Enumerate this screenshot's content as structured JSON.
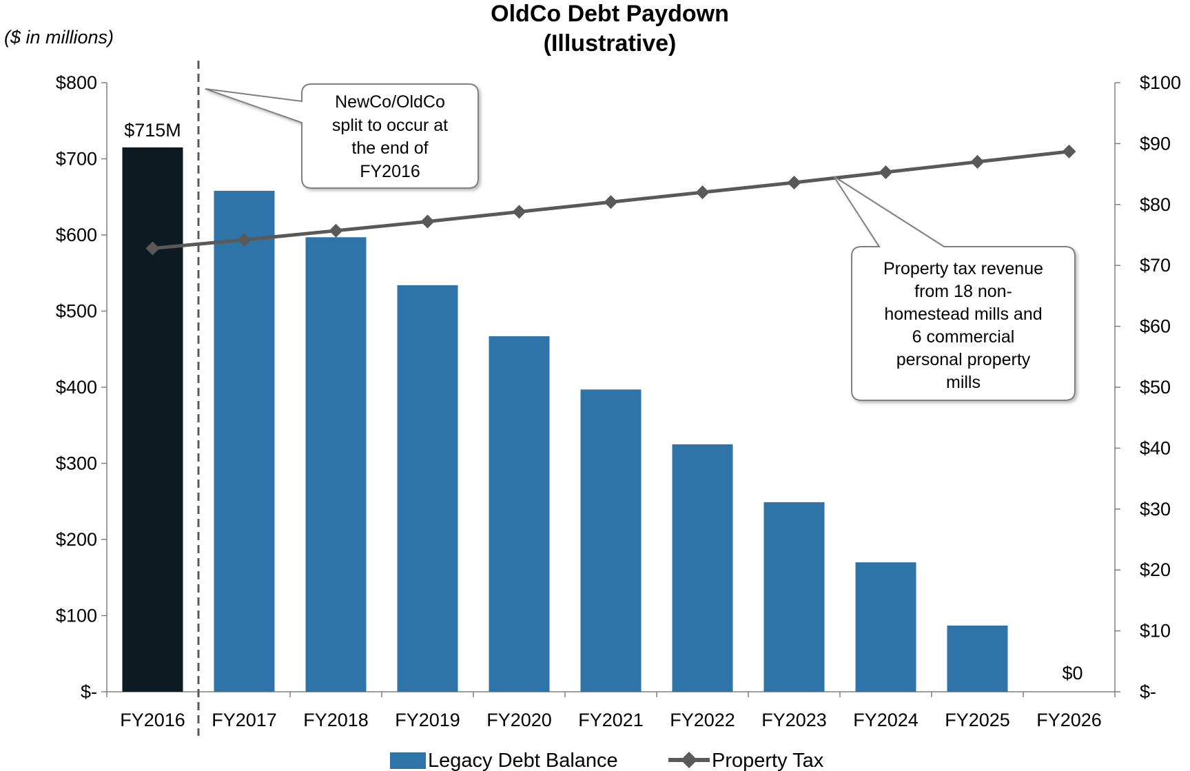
{
  "chart_data": {
    "type": "bar",
    "title_lines": [
      "OldCo Debt Paydown",
      "(Illustrative)"
    ],
    "units_label": "($ in millions)",
    "categories": [
      "FY2016",
      "FY2017",
      "FY2018",
      "FY2019",
      "FY2020",
      "FY2021",
      "FY2022",
      "FY2023",
      "FY2024",
      "FY2025",
      "FY2026"
    ],
    "series": [
      {
        "name": "Legacy Debt Balance",
        "kind": "bar",
        "axis": "left",
        "values": [
          715,
          658,
          597,
          534,
          467,
          397,
          325,
          249,
          170,
          87,
          0
        ],
        "color": "#2E74A8",
        "highlight_color": "#0E1A22",
        "highlight_index": 0
      },
      {
        "name": "Property Tax",
        "kind": "line",
        "axis": "right",
        "values": [
          72.8,
          74.2,
          75.7,
          77.2,
          78.8,
          80.4,
          82.0,
          83.6,
          85.3,
          87.0,
          88.7
        ],
        "color": "#595959"
      }
    ],
    "ylim_left": [
      0,
      800
    ],
    "yticks_left": [
      "$-",
      "$100",
      "$200",
      "$300",
      "$400",
      "$500",
      "$600",
      "$700",
      "$800"
    ],
    "ylim_right": [
      0,
      100
    ],
    "yticks_right": [
      "$-",
      "$10",
      "$20",
      "$30",
      "$40",
      "$50",
      "$60",
      "$70",
      "$80",
      "$90",
      "$100"
    ],
    "data_labels": {
      "first": "$715M",
      "last": "$0"
    },
    "annotations": [
      {
        "lines": [
          "NewCo/OldCo",
          "split to occur at",
          "the end of",
          "FY2016"
        ]
      },
      {
        "lines": [
          "Property tax revenue",
          "from 18 non-",
          "homestead mills and",
          "6 commercial",
          "personal property",
          "mills"
        ]
      }
    ],
    "divider_after_category": "FY2016",
    "legend_position": "bottom",
    "grid": false
  }
}
